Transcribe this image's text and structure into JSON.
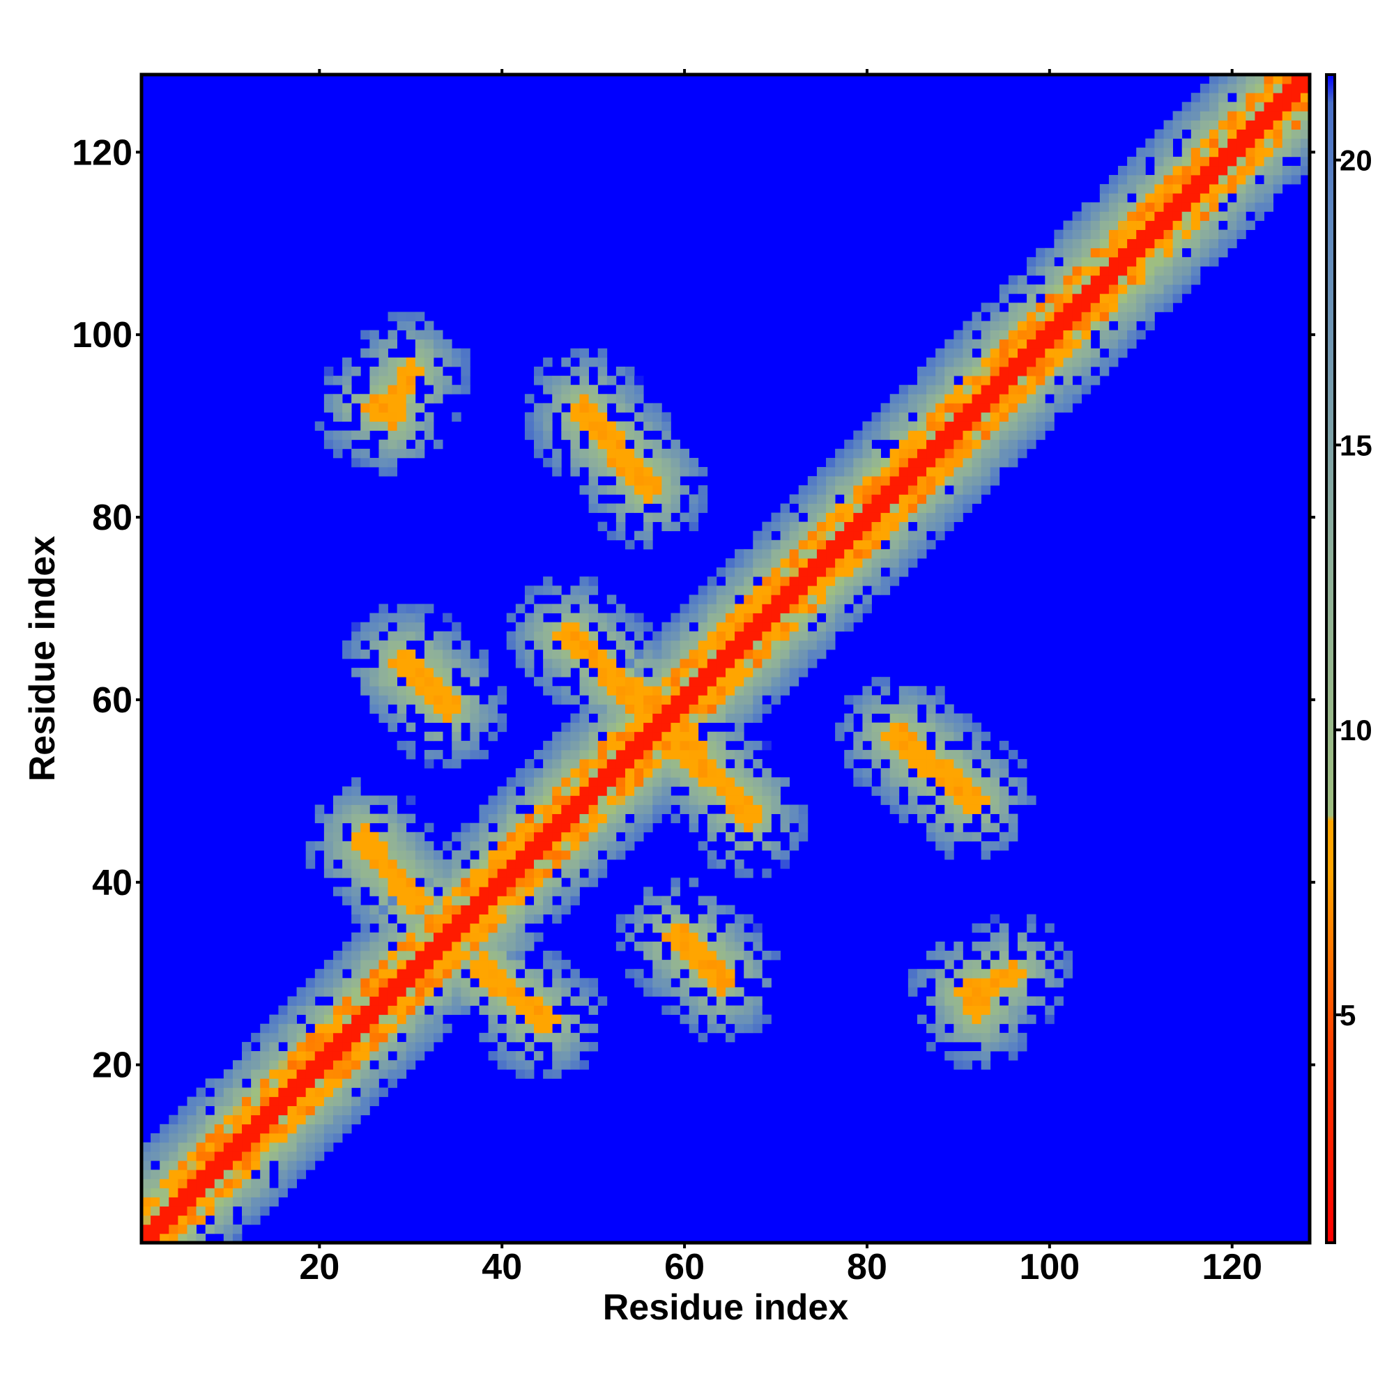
{
  "chart_data": {
    "type": "heatmap",
    "title": "",
    "xlabel": "Residue index",
    "ylabel": "Residue index",
    "n_residues": 128,
    "xlim": [
      1,
      128
    ],
    "ylim": [
      1,
      128
    ],
    "x_ticks": [
      20,
      40,
      60,
      80,
      100,
      120
    ],
    "y_ticks": [
      20,
      40,
      60,
      80,
      100,
      120
    ],
    "colorbar": {
      "range": [
        1.0,
        21.5
      ],
      "ticks": [
        5,
        10,
        15,
        20
      ],
      "stops": [
        {
          "value": 1.0,
          "color": "#ff0000"
        },
        {
          "value": 4.5,
          "color": "#ff4000"
        },
        {
          "value": 7.5,
          "color": "#ffa500"
        },
        {
          "value": 8.4,
          "color": "#ffa500"
        },
        {
          "value": 8.5,
          "color": "#9fbf80"
        },
        {
          "value": 13.0,
          "color": "#8fb09a"
        },
        {
          "value": 19.0,
          "color": "#5f88c0"
        },
        {
          "value": 21.0,
          "color": "#4a70c8"
        },
        {
          "value": 21.5,
          "color": "#0000ff"
        }
      ]
    },
    "background_value": 22,
    "background_color": "#0000ff",
    "diagonal_band": {
      "core_width": 1.5,
      "orange_width": 4,
      "green_width": 10
    },
    "contact_segments": [
      {
        "from": [
          28,
          91
        ],
        "to": [
          30,
          96
        ],
        "value": 7
      },
      {
        "from": [
          49,
          91
        ],
        "to": [
          56,
          83
        ],
        "value": 7
      },
      {
        "from": [
          30,
          64
        ],
        "to": [
          34,
          60
        ],
        "value": 7
      },
      {
        "from": [
          48,
          67
        ],
        "to": [
          56,
          58
        ],
        "value": 7
      },
      {
        "from": [
          25,
          45
        ],
        "to": [
          30,
          38
        ],
        "value": 7
      },
      {
        "from": [
          38,
          31
        ],
        "to": [
          44,
          25
        ],
        "value": 7
      },
      {
        "from": [
          59,
          34
        ],
        "to": [
          64,
          29
        ],
        "value": 7
      },
      {
        "from": [
          60,
          56
        ],
        "to": [
          67,
          47
        ],
        "value": 7
      },
      {
        "from": [
          84,
          56
        ],
        "to": [
          92,
          49
        ],
        "value": 7
      },
      {
        "from": [
          92,
          26
        ],
        "to": [
          94,
          29
        ],
        "value": 7
      }
    ]
  }
}
